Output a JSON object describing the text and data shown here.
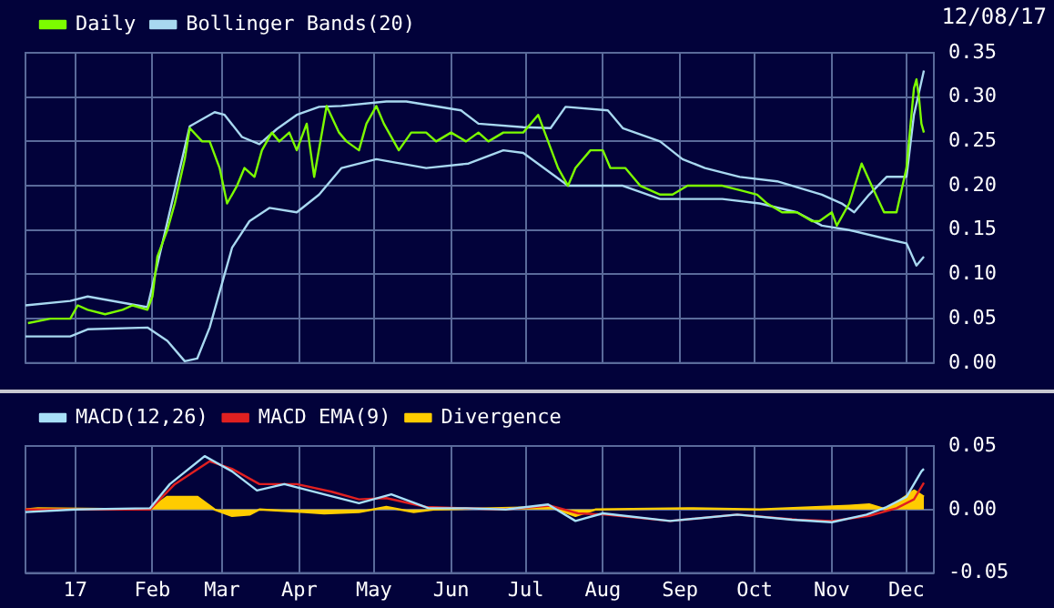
{
  "chart_data": [
    {
      "type": "line",
      "legend": "top left",
      "grid": true,
      "tick_labels": "y",
      "marker": "none",
      "annotations": [
        "12/08/17"
      ],
      "xlim": [
        "2016-12-12",
        "2017-12-12"
      ],
      "xticks": [
        {
          "value": "2017-01-01",
          "label": null
        },
        {
          "value": "2017-02-01",
          "label": null
        },
        {
          "value": "2017-03-01",
          "label": null
        },
        {
          "value": "2017-04-01",
          "label": null
        },
        {
          "value": "2017-05-01",
          "label": null
        },
        {
          "value": "2017-06-01",
          "label": null
        },
        {
          "value": "2017-07-01",
          "label": null
        },
        {
          "value": "2017-08-01",
          "label": null
        },
        {
          "value": "2017-09-01",
          "label": null
        },
        {
          "value": "2017-10-01",
          "label": null
        },
        {
          "value": "2017-11-01",
          "label": null
        },
        {
          "value": "2017-12-01",
          "label": null
        }
      ],
      "ylim": [
        0,
        0.35
      ],
      "yticks": [
        {
          "value": 0,
          "label": "0.00"
        },
        {
          "value": 0.05,
          "label": "0.05"
        },
        {
          "value": 0.1,
          "label": "0.10"
        },
        {
          "value": 0.15,
          "label": "0.15"
        },
        {
          "value": 0.2,
          "label": "0.20"
        },
        {
          "value": 0.25,
          "label": "0.25"
        },
        {
          "value": 0.3,
          "label": "0.30"
        },
        {
          "value": 0.35,
          "label": "0.35"
        }
      ],
      "series": [
        {
          "name": "Daily",
          "color": "#7cfc00",
          "x": [
            "2016-12-13",
            "2016-12-22",
            "2016-12-30",
            "2017-01-02",
            "2017-01-06",
            "2017-01-13",
            "2017-01-20",
            "2017-01-24",
            "2017-01-30",
            "2017-02-01",
            "2017-02-03",
            "2017-02-07",
            "2017-02-10",
            "2017-02-14",
            "2017-02-16",
            "2017-02-21",
            "2017-02-24",
            "2017-02-28",
            "2017-03-03",
            "2017-03-07",
            "2017-03-10",
            "2017-03-14",
            "2017-03-17",
            "2017-03-21",
            "2017-03-24",
            "2017-03-28",
            "2017-03-31",
            "2017-04-04",
            "2017-04-07",
            "2017-04-12",
            "2017-04-17",
            "2017-04-20",
            "2017-04-25",
            "2017-04-28",
            "2017-05-02",
            "2017-05-05",
            "2017-05-11",
            "2017-05-16",
            "2017-05-22",
            "2017-05-26",
            "2017-06-01",
            "2017-06-07",
            "2017-06-12",
            "2017-06-16",
            "2017-06-22",
            "2017-06-30",
            "2017-07-06",
            "2017-07-10",
            "2017-07-14",
            "2017-07-18",
            "2017-07-21",
            "2017-07-27",
            "2017-08-01",
            "2017-08-04",
            "2017-08-10",
            "2017-08-16",
            "2017-08-24",
            "2017-08-29",
            "2017-09-04",
            "2017-09-11",
            "2017-09-18",
            "2017-09-25",
            "2017-10-02",
            "2017-10-06",
            "2017-10-12",
            "2017-10-18",
            "2017-10-24",
            "2017-10-27",
            "2017-11-01",
            "2017-11-03",
            "2017-11-08",
            "2017-11-13",
            "2017-11-17",
            "2017-11-22",
            "2017-11-27",
            "2017-12-01",
            "2017-12-04",
            "2017-12-05",
            "2017-12-06",
            "2017-12-07",
            "2017-12-08"
          ],
          "values": [
            0.045,
            0.05,
            0.05,
            0.065,
            0.06,
            0.055,
            0.06,
            0.065,
            0.06,
            0.075,
            0.12,
            0.15,
            0.18,
            0.23,
            0.265,
            0.25,
            0.25,
            0.22,
            0.18,
            0.2,
            0.22,
            0.21,
            0.24,
            0.26,
            0.25,
            0.26,
            0.24,
            0.27,
            0.21,
            0.29,
            0.26,
            0.25,
            0.24,
            0.27,
            0.29,
            0.27,
            0.24,
            0.26,
            0.26,
            0.25,
            0.26,
            0.25,
            0.26,
            0.25,
            0.26,
            0.26,
            0.28,
            0.25,
            0.22,
            0.2,
            0.22,
            0.24,
            0.24,
            0.22,
            0.22,
            0.2,
            0.19,
            0.19,
            0.2,
            0.2,
            0.2,
            0.195,
            0.19,
            0.18,
            0.17,
            0.17,
            0.16,
            0.16,
            0.17,
            0.155,
            0.18,
            0.225,
            0.2,
            0.17,
            0.17,
            0.22,
            0.31,
            0.32,
            0.3,
            0.27,
            0.26
          ]
        },
        {
          "name": "Bollinger Bands(20)",
          "color": "#a8d8f0",
          "x": [
            "2016-12-12",
            "2016-12-30",
            "2017-01-06",
            "2017-01-30",
            "2017-02-16",
            "2017-02-26",
            "2017-03-02",
            "2017-03-09",
            "2017-03-16",
            "2017-03-23",
            "2017-03-31",
            "2017-04-09",
            "2017-04-18",
            "2017-05-06",
            "2017-05-14",
            "2017-06-05",
            "2017-06-12",
            "2017-06-30",
            "2017-07-11",
            "2017-07-17",
            "2017-08-03",
            "2017-08-09",
            "2017-08-24",
            "2017-09-02",
            "2017-09-11",
            "2017-09-25",
            "2017-10-10",
            "2017-10-28",
            "2017-11-05",
            "2017-11-10",
            "2017-11-16",
            "2017-11-23",
            "2017-12-01",
            "2017-12-04",
            "2017-12-08"
          ],
          "values": [
            0.065,
            0.07,
            0.075,
            0.063,
            0.267,
            0.283,
            0.28,
            0.255,
            0.247,
            0.264,
            0.28,
            0.289,
            0.29,
            0.295,
            0.295,
            0.285,
            0.27,
            0.266,
            0.265,
            0.289,
            0.285,
            0.265,
            0.25,
            0.23,
            0.22,
            0.21,
            0.205,
            0.19,
            0.18,
            0.17,
            0.19,
            0.21,
            0.21,
            0.28,
            0.33
          ]
        },
        {
          "color": "#a8d8f0",
          "x": [
            "2016-12-12",
            "2016-12-30",
            "2017-01-06",
            "2017-01-30",
            "2017-02-07",
            "2017-02-14",
            "2017-02-19",
            "2017-02-24",
            "2017-02-28",
            "2017-03-05",
            "2017-03-12",
            "2017-03-20",
            "2017-03-31",
            "2017-04-09",
            "2017-04-18",
            "2017-05-02",
            "2017-05-22",
            "2017-06-08",
            "2017-06-22",
            "2017-06-30",
            "2017-07-18",
            "2017-08-09",
            "2017-08-24",
            "2017-09-18",
            "2017-10-03",
            "2017-10-18",
            "2017-10-28",
            "2017-11-08",
            "2017-11-23",
            "2017-12-01",
            "2017-12-05",
            "2017-12-08"
          ],
          "values": [
            0.03,
            0.03,
            0.038,
            0.04,
            0.025,
            0.002,
            0.005,
            0.04,
            0.08,
            0.13,
            0.16,
            0.175,
            0.17,
            0.19,
            0.22,
            0.23,
            0.22,
            0.225,
            0.24,
            0.237,
            0.2,
            0.2,
            0.185,
            0.185,
            0.18,
            0.17,
            0.155,
            0.15,
            0.14,
            0.135,
            0.11,
            0.12
          ]
        }
      ]
    },
    {
      "type": "line",
      "legend": "top left",
      "grid": true,
      "marker": "none",
      "xlim": [
        "2016-12-12",
        "2017-12-12"
      ],
      "xticks": [
        {
          "value": "2017-01-01",
          "label": "17"
        },
        {
          "value": "2017-02-01",
          "label": "Feb"
        },
        {
          "value": "2017-03-01",
          "label": "Mar"
        },
        {
          "value": "2017-04-01",
          "label": "Apr"
        },
        {
          "value": "2017-05-01",
          "label": "May"
        },
        {
          "value": "2017-06-01",
          "label": "Jun"
        },
        {
          "value": "2017-07-01",
          "label": "Jul"
        },
        {
          "value": "2017-08-01",
          "label": "Aug"
        },
        {
          "value": "2017-09-01",
          "label": "Sep"
        },
        {
          "value": "2017-10-01",
          "label": "Oct"
        },
        {
          "value": "2017-11-01",
          "label": "Nov"
        },
        {
          "value": "2017-12-01",
          "label": "Dec"
        }
      ],
      "ylim": [
        -0.05,
        0.05
      ],
      "yticks": [
        {
          "value": -0.05,
          "label": "-0.05"
        },
        {
          "value": 0,
          "label": "0.00"
        },
        {
          "value": 0.05,
          "label": "0.05"
        }
      ],
      "series": [
        {
          "name": "Divergence",
          "type": "area",
          "color": "#ffcc00",
          "x": [
            "2016-12-12",
            "2016-12-17",
            "2017-01-31",
            "2017-02-07",
            "2017-02-19",
            "2017-02-26",
            "2017-03-05",
            "2017-03-12",
            "2017-03-16",
            "2017-04-03",
            "2017-04-11",
            "2017-04-25",
            "2017-05-06",
            "2017-05-17",
            "2017-05-25",
            "2017-07-11",
            "2017-07-21",
            "2017-07-29",
            "2017-09-04",
            "2017-10-03",
            "2017-11-08",
            "2017-11-16",
            "2017-11-23",
            "2017-12-04",
            "2017-12-08"
          ],
          "values": [
            0,
            0.001,
            0,
            0.01,
            0.01,
            0,
            -0.005,
            -0.004,
            0,
            -0.002,
            -0.003,
            -0.002,
            0.002,
            -0.002,
            0,
            0.002,
            -0.005,
            0,
            0.001,
            0,
            0.003,
            0.004,
            0,
            0.015,
            0.01
          ]
        },
        {
          "name": "MACD(12,26)",
          "color": "#a8e0f8",
          "x": [
            "2016-12-12",
            "2017-01-01",
            "2017-01-31",
            "2017-02-08",
            "2017-02-22",
            "2017-03-05",
            "2017-03-15",
            "2017-03-26",
            "2017-04-11",
            "2017-04-25",
            "2017-05-08",
            "2017-05-23",
            "2017-06-07",
            "2017-06-23",
            "2017-07-10",
            "2017-07-21",
            "2017-08-01",
            "2017-08-28",
            "2017-09-24",
            "2017-10-16",
            "2017-11-01",
            "2017-11-15",
            "2017-11-23",
            "2017-12-01",
            "2017-12-07",
            "2017-12-08"
          ],
          "values": [
            -0.002,
            0,
            0.001,
            0.02,
            0.042,
            0.03,
            0.015,
            0.02,
            0.012,
            0.005,
            0.012,
            0.001,
            0.001,
            0,
            0.004,
            -0.009,
            -0.003,
            -0.009,
            -0.004,
            -0.008,
            -0.01,
            -0.004,
            0.002,
            0.01,
            0.03,
            0.032
          ]
        },
        {
          "name": "MACD EMA(9)",
          "color": "#e02020",
          "x": [
            "2016-12-12",
            "2017-01-31",
            "2017-02-10",
            "2017-02-24",
            "2017-03-05",
            "2017-03-16",
            "2017-03-31",
            "2017-04-14",
            "2017-04-25",
            "2017-05-06",
            "2017-05-22",
            "2017-06-22",
            "2017-07-11",
            "2017-07-22",
            "2017-08-02",
            "2017-08-28",
            "2017-09-24",
            "2017-10-18",
            "2017-11-01",
            "2017-11-16",
            "2017-11-27",
            "2017-12-04",
            "2017-12-08"
          ],
          "values": [
            0,
            0,
            0.02,
            0.038,
            0.032,
            0.02,
            0.02,
            0.014,
            0.008,
            0.009,
            0.002,
            0,
            0.003,
            -0.003,
            -0.004,
            -0.009,
            -0.004,
            -0.008,
            -0.009,
            -0.005,
            0.001,
            0.008,
            0.021
          ]
        }
      ]
    }
  ]
}
